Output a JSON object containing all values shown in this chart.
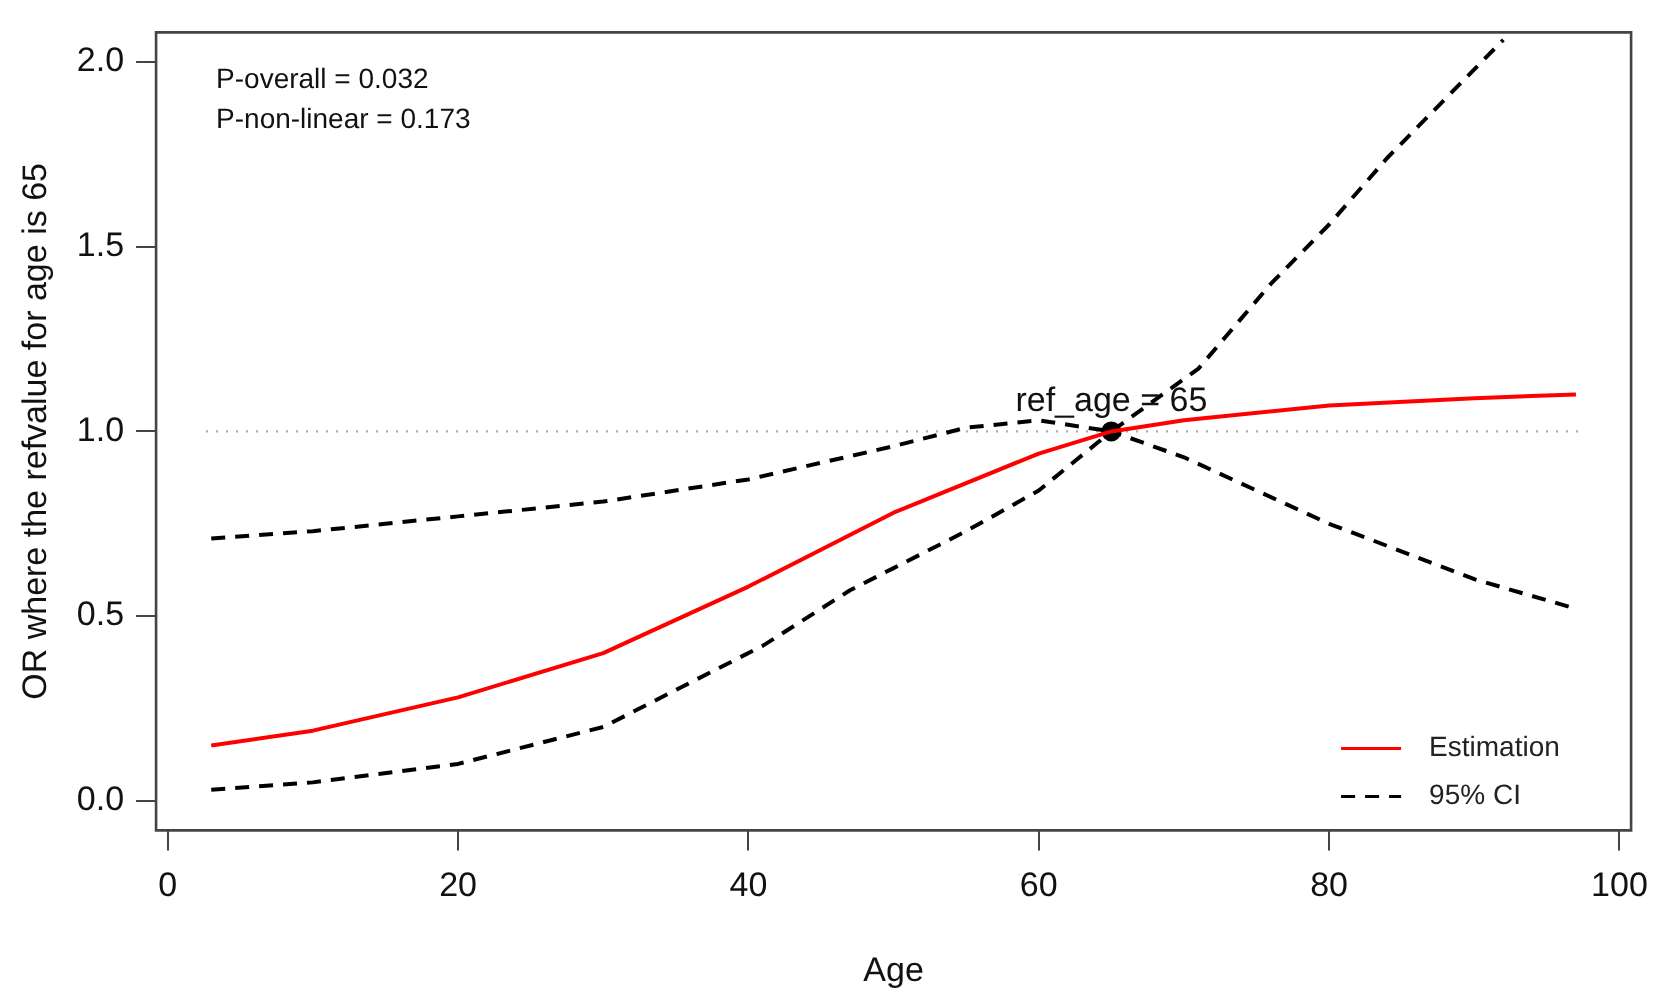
{
  "chart_data": {
    "type": "line",
    "xlabel": "Age",
    "ylabel": "OR where the refvalue for age is 65",
    "xlim": [
      -0.8,
      100.8
    ],
    "xticks": [
      0,
      20,
      40,
      60,
      80,
      100
    ],
    "ylim": [
      -0.08,
      2.08
    ],
    "yticks": [
      {
        "value": 0,
        "label": "0.0"
      },
      {
        "value": 0.5,
        "label": "0.5"
      },
      {
        "value": 1,
        "label": "1.0"
      },
      {
        "value": 1.5,
        "label": "1.5"
      },
      {
        "value": 2,
        "label": "2.0"
      }
    ],
    "grid": false,
    "legend": "bottom right",
    "marker": "none",
    "series": [
      {
        "name": "Estimation",
        "color": "#ff0000",
        "line_style": "solid",
        "x": [
          3,
          10,
          20,
          30,
          40,
          50,
          60,
          65,
          70,
          80,
          90,
          97
        ],
        "values": [
          0.15,
          0.19,
          0.28,
          0.4,
          0.58,
          0.78,
          0.94,
          1.0,
          1.03,
          1.07,
          1.09,
          1.1
        ]
      },
      {
        "name": "95% CI",
        "color": "#000000",
        "line_style": "dashed",
        "x": [
          3,
          10,
          20,
          30,
          40,
          50,
          55,
          60,
          65,
          71,
          76,
          80,
          84,
          88,
          92
        ],
        "values": [
          0.71,
          0.73,
          0.77,
          0.81,
          0.87,
          0.96,
          1.01,
          1.03,
          1.0,
          1.17,
          1.4,
          1.56,
          1.74,
          1.9,
          2.06
        ]
      },
      {
        "color": "#000000",
        "line_style": "dashed",
        "x": [
          3,
          10,
          20,
          30,
          35,
          41,
          47,
          50,
          55,
          60,
          65,
          70,
          80,
          90,
          97
        ],
        "values": [
          0.03,
          0.05,
          0.1,
          0.2,
          0.3,
          0.42,
          0.57,
          0.63,
          0.73,
          0.84,
          1.0,
          0.93,
          0.75,
          0.6,
          0.52
        ]
      },
      {
        "type": "scatter",
        "marker": "circle",
        "color": "#000000",
        "x": [
          65
        ],
        "values": [
          1.0
        ]
      }
    ],
    "ref_lines": [
      {
        "axis": "y",
        "value": 1,
        "color": "#aaaaaa",
        "line_style": "dotted"
      }
    ],
    "annotations": [
      "P-overall = 0.032",
      "P-non-linear = 0.173",
      {
        "text": "ref_age = 65",
        "x": 65,
        "y": 1.0
      }
    ]
  }
}
